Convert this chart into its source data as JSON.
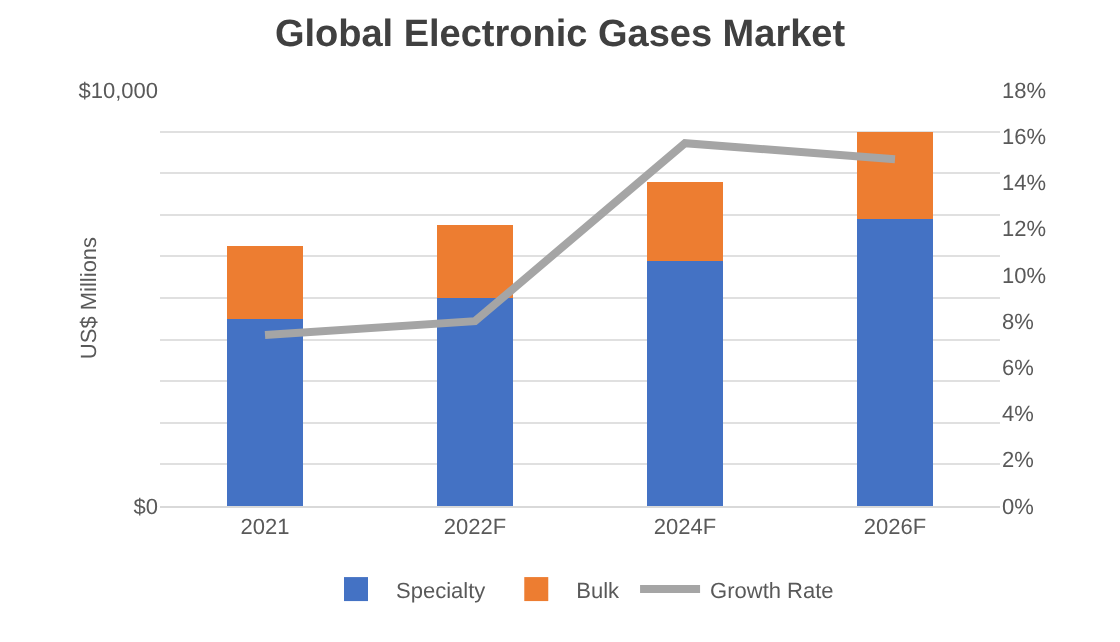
{
  "chart_data": {
    "type": "bar",
    "title": "Global Electronic Gases Market",
    "ylabel": "US$ Millions",
    "categories": [
      "2021",
      "2022F",
      "2024F",
      "2026F"
    ],
    "stacked": true,
    "series": [
      {
        "name": "Specialty",
        "color": "#4472c4",
        "values": [
          4500,
          5000,
          5900,
          6900
        ]
      },
      {
        "name": "Bulk",
        "color": "#ed7d31",
        "values": [
          1750,
          1750,
          1900,
          2100
        ]
      },
      {
        "name": "Growth Rate",
        "type": "line",
        "axis": "y2",
        "color": "#a5a5a5",
        "values": [
          7.4,
          8.0,
          15.7,
          15.0
        ]
      }
    ],
    "ylim": [
      0,
      10000
    ],
    "yticks": [
      {
        "value": 0,
        "label": "$0"
      },
      {
        "value": 1000,
        "label": null
      },
      {
        "value": 2000,
        "label": null
      },
      {
        "value": 3000,
        "label": null
      },
      {
        "value": 4000,
        "label": null
      },
      {
        "value": 5000,
        "label": null
      },
      {
        "value": 6000,
        "label": null
      },
      {
        "value": 7000,
        "label": null
      },
      {
        "value": 8000,
        "label": null
      },
      {
        "value": 9000,
        "label": null
      },
      {
        "value": 10000,
        "label": "$10,000"
      }
    ],
    "y2lim": [
      0,
      18
    ],
    "y2ticks": [
      {
        "value": 0,
        "label": "0%"
      },
      {
        "value": 2,
        "label": "2%"
      },
      {
        "value": 4,
        "label": "4%"
      },
      {
        "value": 6,
        "label": "6%"
      },
      {
        "value": 8,
        "label": "8%"
      },
      {
        "value": 10,
        "label": "10%"
      },
      {
        "value": 12,
        "label": "12%"
      },
      {
        "value": 14,
        "label": "14%"
      },
      {
        "value": 16,
        "label": "16%"
      },
      {
        "value": 18,
        "label": "18%"
      }
    ],
    "grid": "y",
    "legend": "bottom",
    "line_style": "solid",
    "marker": "none"
  }
}
